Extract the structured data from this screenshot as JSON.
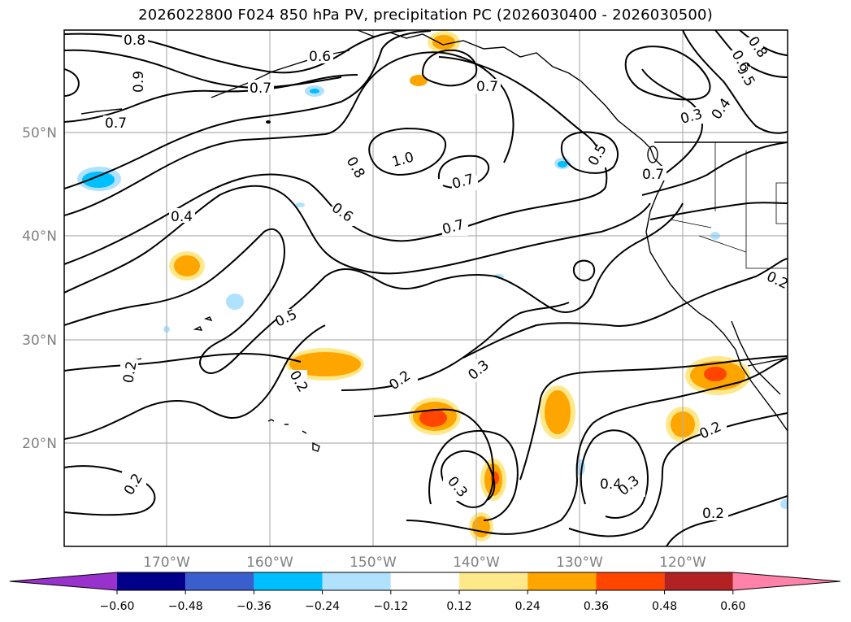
{
  "title": "2026022800 F024 850 hPa PV, precipitation PC (2026030400 - 2026030500)",
  "lat_labels": [
    "50°N",
    "40°N",
    "30°N",
    "20°N"
  ],
  "lon_labels": [
    "170°W",
    "160°W",
    "150°W",
    "140°W",
    "130°W",
    "120°W"
  ],
  "contour_labels": [
    "0.8",
    "0.6",
    "0.9",
    "0.7",
    "0.7",
    "0.7",
    "1.0",
    "0.8",
    "0.7",
    "0.6",
    "0.7",
    "0.5",
    "0.7",
    "0.4",
    "0.5",
    "0.2",
    "0.2",
    "0.2",
    "0.3",
    "0.3",
    "0.2",
    "0.2",
    "0.4",
    "0.3",
    "0.2",
    "0.3",
    "0.5",
    "0.4",
    "0.6",
    "0.8",
    "0.2"
  ],
  "colorbar": {
    "ticks": [
      "−0.60",
      "−0.48",
      "−0.36",
      "−0.24",
      "−0.12",
      "0.12",
      "0.24",
      "0.36",
      "0.48",
      "0.60"
    ],
    "colors": [
      "#9932cc",
      "#00008b",
      "#3a5fcd",
      "#00bfff",
      "#b0e2ff",
      "#ffffff",
      "#ffe88a",
      "#ffa500",
      "#ff4500",
      "#b22222",
      "#ff82ab"
    ]
  }
}
